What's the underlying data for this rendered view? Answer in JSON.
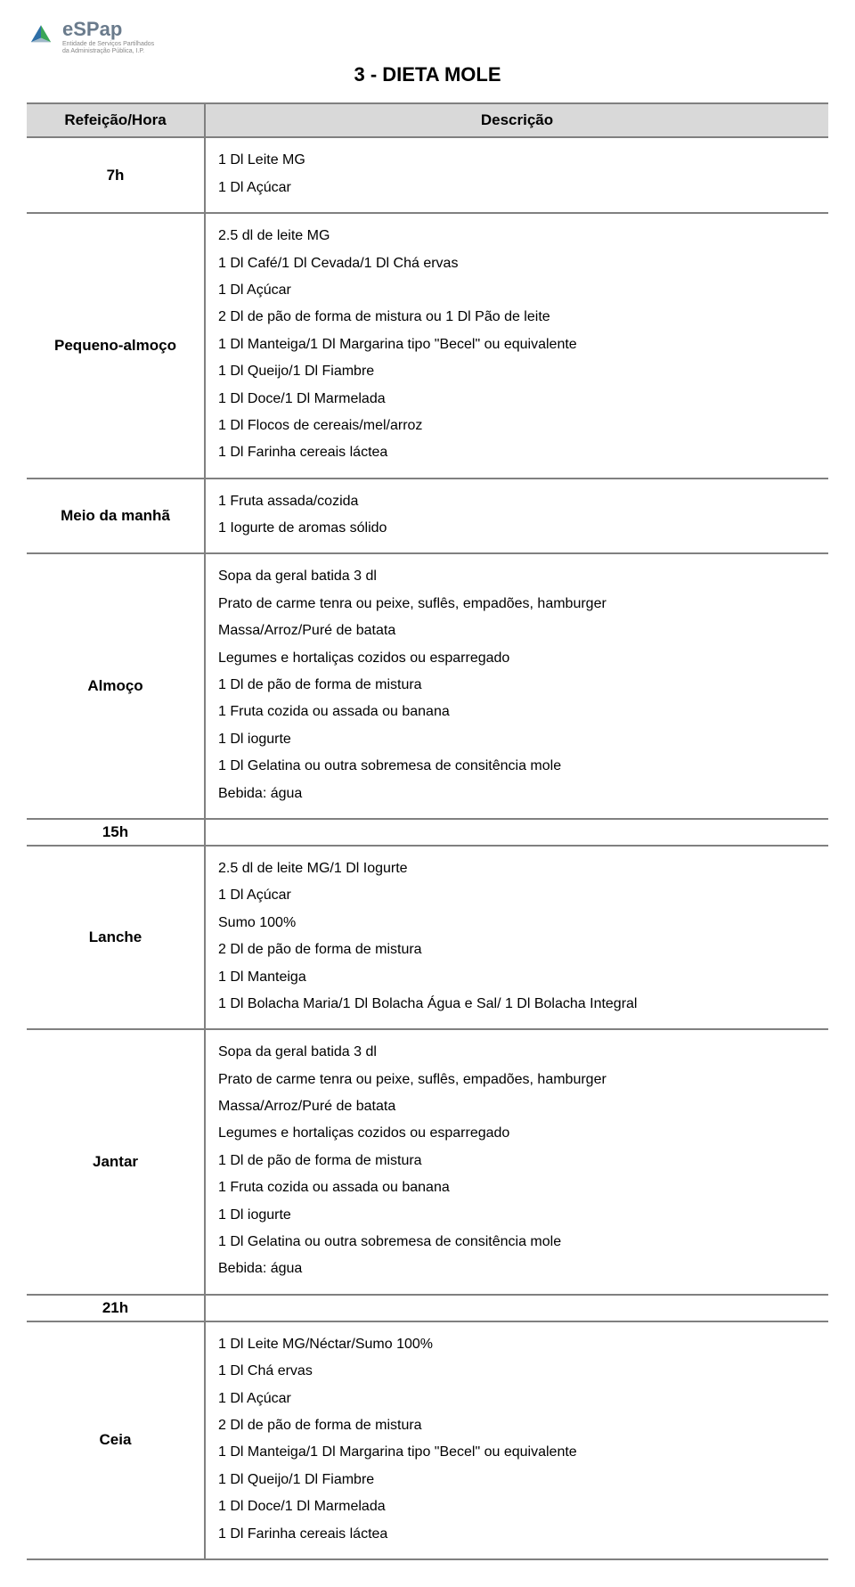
{
  "logo": {
    "brand": "eSPap",
    "sub1": "Entidade de Serviços Partilhados",
    "sub2": "da Administração Pública, I.P."
  },
  "title": "3 - DIETA MOLE",
  "header": {
    "col1": "Refeição/Hora",
    "col2": "Descrição"
  },
  "colors": {
    "header_bg": "#d9d9d9",
    "border": "#808080",
    "logo_text": "#6a7b8c",
    "logo_green": "#3aa657",
    "logo_blue": "#2e6fa7"
  },
  "rows": [
    {
      "label": "7h",
      "lines": [
        "1 Dl Leite MG",
        "1 Dl Açúcar"
      ]
    },
    {
      "label": "Pequeno-almoço",
      "lines": [
        " 2.5 dl de leite MG",
        "1 Dl Café/1 Dl Cevada/1 Dl Chá ervas",
        "1 Dl Açúcar",
        "2 Dl de pão de forma de mistura ou 1 Dl Pão de leite",
        "1 Dl Manteiga/1 Dl Margarina tipo \"Becel\" ou equivalente",
        "1 Dl Queijo/1 Dl Fiambre",
        "1 Dl Doce/1 Dl Marmelada",
        "1 Dl Flocos de cereais/mel/arroz",
        "1 Dl Farinha cereais láctea"
      ]
    },
    {
      "label": "Meio da manhã",
      "lines": [
        "1 Fruta assada/cozida",
        "1 Iogurte de aromas sólido"
      ]
    },
    {
      "label": "Almoço",
      "lines": [
        "Sopa da geral batida 3 dl",
        "Prato de carme tenra ou peixe, suflês, empadões, hamburger",
        "Massa/Arroz/Puré de batata",
        "Legumes e hortaliças cozidos ou esparregado",
        "1 Dl de pão de forma de mistura",
        "1 Fruta cozida ou assada ou banana",
        "1 Dl iogurte",
        "1 Dl Gelatina ou outra sobremesa de consitência mole",
        "Bebida: água"
      ]
    },
    {
      "label": "15h",
      "lines": []
    },
    {
      "label": "Lanche",
      "lines": [
        "2.5 dl de leite MG/1 Dl Iogurte",
        "1 Dl Açúcar",
        "Sumo 100%",
        "2 Dl de pão de forma de mistura",
        "1 Dl Manteiga",
        "1 Dl Bolacha Maria/1 Dl Bolacha Água e Sal/ 1 Dl Bolacha Integral"
      ]
    },
    {
      "label": "Jantar",
      "lines": [
        "Sopa da geral batida 3 dl",
        "Prato de carme tenra ou peixe, suflês, empadões, hamburger",
        "Massa/Arroz/Puré de batata",
        "Legumes e hortaliças cozidos ou esparregado",
        "1 Dl de pão de forma de mistura",
        "1 Fruta cozida ou assada ou banana",
        "1 Dl iogurte",
        "1 Dl Gelatina ou outra sobremesa de consitência mole",
        "Bebida: água"
      ]
    },
    {
      "label": "21h",
      "lines": []
    },
    {
      "label": "Ceia",
      "lines": [
        "1 Dl Leite MG/Néctar/Sumo 100%",
        "1 Dl Chá ervas",
        "1 Dl Açúcar",
        "2 Dl de pão de forma de mistura",
        "1 Dl Manteiga/1 Dl Margarina tipo \"Becel\" ou equivalente",
        "1 Dl Queijo/1 Dl Fiambre",
        "1 Dl Doce/1 Dl Marmelada",
        "1 Dl Farinha cereais láctea"
      ]
    }
  ]
}
